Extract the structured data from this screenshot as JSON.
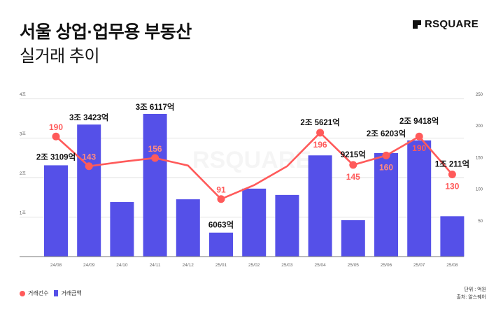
{
  "header": {
    "title": "서울 상업·업무용 부동산",
    "subtitle": "실거래 추이",
    "logo": "RSQUARE"
  },
  "watermark": "RSQUARE",
  "legend": {
    "count_label": "거래건수",
    "amount_label": "거래금액"
  },
  "notes": {
    "unit": "단위 : 억원",
    "source": "출처: 알스퀘어"
  },
  "colors": {
    "bar": "#5550e8",
    "line": "#ff5a5a",
    "count_label_on_bar": "#ff8a80"
  },
  "chart_data": {
    "type": "bar+line",
    "categories": [
      "24/08",
      "24/09",
      "24/10",
      "24/11",
      "24/12",
      "25/01",
      "25/02",
      "25/03",
      "25/04",
      "25/05",
      "25/06",
      "25/07",
      "25/08"
    ],
    "series": [
      {
        "name": "거래금액",
        "type": "bar",
        "axis": "left",
        "unit": "억원",
        "values": [
          23109,
          33423,
          13800,
          36117,
          14500,
          6063,
          17200,
          15600,
          25621,
          9215,
          26203,
          29418,
          10211
        ],
        "labels": [
          "2조 3109억",
          "3조 3423억",
          "",
          "3조 6117억",
          "",
          "6063억",
          "",
          "",
          "2조 5621억",
          "9215억",
          "2조 6203억",
          "2조 9418억",
          "1조 211억"
        ]
      },
      {
        "name": "거래건수",
        "type": "line",
        "axis": "right",
        "values": [
          190,
          143,
          150,
          156,
          144,
          91,
          113,
          143,
          196,
          145,
          160,
          190,
          130
        ],
        "labels": [
          "190",
          "143",
          "",
          "156",
          "",
          "91",
          "",
          "",
          "196",
          "145",
          "160",
          "190",
          "130"
        ],
        "markers": [
          true,
          true,
          false,
          true,
          false,
          true,
          false,
          false,
          true,
          true,
          true,
          true,
          true
        ]
      }
    ],
    "left_axis": {
      "ticks": [
        "1조",
        "2조",
        "3조",
        "4조"
      ],
      "range": [
        0,
        40000
      ]
    },
    "right_axis": {
      "ticks": [
        "50",
        "100",
        "150",
        "200",
        "250"
      ],
      "range": [
        0,
        250
      ]
    },
    "grid": true,
    "legend_position": "bottom-left"
  }
}
